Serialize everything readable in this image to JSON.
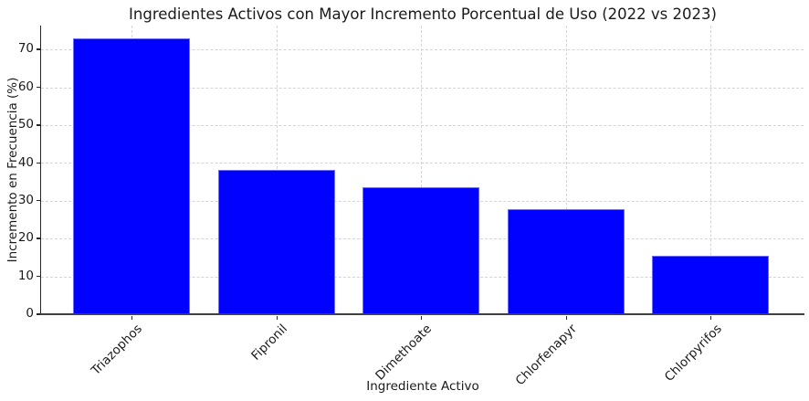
{
  "chart_data": {
    "type": "bar",
    "title": "Ingredientes Activos con Mayor Incremento Porcentual de Uso (2022 vs 2023)",
    "xlabel": "Ingrediente Activo",
    "ylabel": "Incremento en Frecuencia (%)",
    "categories": [
      "Triazophos",
      "Fipronil",
      "Dimethoate",
      "Chlorfenapyr",
      "Chlorpyrifos"
    ],
    "values": [
      72.9,
      38.2,
      33.6,
      27.8,
      15.5
    ],
    "yticks": [
      0,
      10,
      20,
      30,
      40,
      50,
      60,
      70
    ],
    "ylim": [
      0,
      76.3
    ],
    "grid": "both-axes dashed light gray",
    "legend": "none",
    "bar_color": "#0101ff",
    "bar_edge_color": "#6b6bff",
    "grid_color": "#d4d4d4",
    "axis_color": "#262626",
    "background_color": "#ffffff"
  }
}
